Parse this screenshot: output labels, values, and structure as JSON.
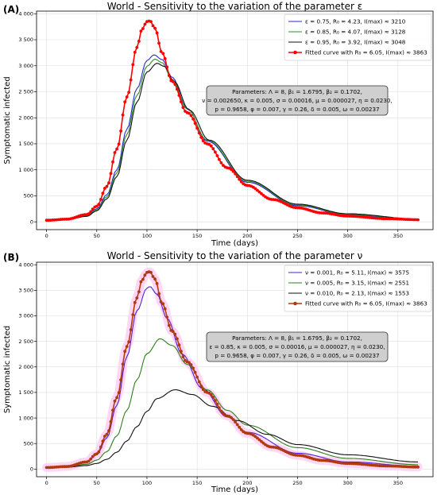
{
  "chart_data": [
    {
      "panel_label": "(A)",
      "type": "line",
      "title": "World - Sensitivity to the variation of the parameter ε",
      "xlabel": "Time (days)",
      "ylabel": "Symptomatic infected",
      "xlim": [
        -10,
        385
      ],
      "ylim": [
        -150,
        4050
      ],
      "xticks": [
        0,
        50,
        100,
        150,
        200,
        250,
        300,
        350
      ],
      "yticks": [
        0,
        500,
        1000,
        1500,
        2000,
        2500,
        3000,
        3500,
        4000
      ],
      "ytick_labels": [
        "0",
        "500",
        "1 000",
        "1 500",
        "2 000",
        "2 500",
        "3 000",
        "3 500",
        "4 000"
      ],
      "grid": true,
      "legend_position": "top-right",
      "series": [
        {
          "legend": "ε = 0.75, R₀ = 4.23,  I(max) ≈ 3210",
          "color": "#2b2bcc",
          "marker": "none",
          "x": [
            0,
            20,
            40,
            50,
            60,
            70,
            80,
            90,
            100,
            107,
            115,
            125,
            140,
            160,
            200,
            250,
            300,
            370
          ],
          "y": [
            30,
            45,
            125,
            250,
            520,
            1000,
            1780,
            2560,
            3100,
            3210,
            3120,
            2780,
            2180,
            1550,
            760,
            310,
            135,
            45
          ]
        },
        {
          "legend": "ε = 0.85, R₀ = 4.07,  I(max) ≈ 3128",
          "color": "#2e8b2e",
          "marker": "none",
          "x": [
            0,
            20,
            40,
            50,
            60,
            70,
            80,
            90,
            100,
            108,
            115,
            125,
            140,
            160,
            200,
            250,
            300,
            370
          ],
          "y": [
            30,
            42,
            115,
            230,
            480,
            940,
            1680,
            2430,
            2990,
            3128,
            3060,
            2740,
            2170,
            1570,
            780,
            325,
            145,
            50
          ]
        },
        {
          "legend": "ε = 0.95, R₀ = 3.92,  I(max) ≈ 3048",
          "color": "#111111",
          "marker": "none",
          "x": [
            0,
            20,
            40,
            50,
            60,
            70,
            80,
            90,
            100,
            110,
            117,
            127,
            142,
            162,
            200,
            250,
            300,
            370
          ],
          "y": [
            30,
            40,
            105,
            210,
            440,
            870,
            1570,
            2300,
            2880,
            3048,
            2990,
            2700,
            2150,
            1570,
            800,
            340,
            155,
            55
          ]
        },
        {
          "legend": "Fitted curve with R₀ = 6.05, I(max) ≈ 3863",
          "color": "#ff0000",
          "marker": "dot",
          "x": [
            0,
            20,
            40,
            50,
            60,
            70,
            80,
            90,
            95,
            100,
            103,
            108,
            115,
            125,
            140,
            160,
            180,
            200,
            225,
            250,
            275,
            300,
            340,
            370
          ],
          "y": [
            30,
            50,
            140,
            300,
            680,
            1400,
            2400,
            3350,
            3700,
            3850,
            3863,
            3720,
            3250,
            2700,
            2100,
            1500,
            1040,
            700,
            430,
            270,
            170,
            110,
            60,
            40
          ]
        }
      ],
      "params_box": [
        "Parameters:  Λ = 8, β₁ = 1.6795, β₂ = 0.1702,",
        "ν = 0.002650, κ = 0.005, σ = 0.00016, μ = 0.000027, η = 0.0230,",
        "p = 0.9658, φ = 0.007, γ = 0.26, δ = 0.005, ω = 0.00237"
      ]
    },
    {
      "panel_label": "(B)",
      "type": "line",
      "title": "World - Sensitivity to the variation of the parameter ν",
      "xlabel": "Time (days)",
      "ylabel": "Symptomatic infected",
      "xlim": [
        -10,
        385
      ],
      "ylim": [
        -150,
        4050
      ],
      "xticks": [
        0,
        50,
        100,
        150,
        200,
        250,
        300,
        350
      ],
      "yticks": [
        0,
        500,
        1000,
        1500,
        2000,
        2500,
        3000,
        3500,
        4000
      ],
      "ytick_labels": [
        "0",
        "500",
        "1 000",
        "1 500",
        "2 000",
        "2 500",
        "3 000",
        "3 500",
        "4 000"
      ],
      "grid": true,
      "legend_position": "top-right",
      "series": [
        {
          "legend": "ν = 0.001, R₀ = 5.11,  I(max) ≈ 3575",
          "color": "#4b1fd6",
          "marker": "none",
          "x": [
            0,
            20,
            40,
            50,
            60,
            70,
            80,
            90,
            100,
            103,
            110,
            120,
            135,
            155,
            180,
            200,
            250,
            300,
            370
          ],
          "y": [
            30,
            50,
            135,
            280,
            610,
            1250,
            2200,
            3100,
            3540,
            3575,
            3420,
            2950,
            2250,
            1580,
            1020,
            720,
            310,
            140,
            55
          ]
        },
        {
          "legend": "ν = 0.005, R₀ = 3.15,  I(max) ≈ 2551",
          "color": "#2e7d1e",
          "marker": "none",
          "x": [
            0,
            20,
            40,
            50,
            60,
            70,
            80,
            90,
            100,
            113,
            125,
            140,
            160,
            180,
            200,
            250,
            300,
            370
          ],
          "y": [
            30,
            40,
            95,
            175,
            340,
            650,
            1150,
            1750,
            2260,
            2551,
            2420,
            2050,
            1550,
            1150,
            860,
            420,
            210,
            85
          ]
        },
        {
          "legend": "ν = 0.010, R₀ = 2.13,  I(max) ≈ 1553",
          "color": "#111111",
          "marker": "none",
          "x": [
            0,
            20,
            40,
            50,
            60,
            70,
            80,
            90,
            100,
            110,
            128,
            145,
            165,
            190,
            220,
            250,
            300,
            370
          ],
          "y": [
            30,
            35,
            70,
            110,
            190,
            330,
            550,
            830,
            1130,
            1380,
            1553,
            1460,
            1230,
            950,
            680,
            480,
            280,
            140
          ]
        },
        {
          "legend": "Fitted curve with R₀ = 6.05, I(max) ≈ 3863",
          "color": "#b03a10",
          "marker": "dot",
          "x": [
            0,
            20,
            40,
            50,
            60,
            70,
            80,
            90,
            95,
            100,
            103,
            108,
            115,
            125,
            140,
            160,
            180,
            200,
            225,
            250,
            275,
            300,
            340,
            370
          ],
          "y": [
            30,
            50,
            140,
            300,
            680,
            1400,
            2400,
            3350,
            3700,
            3850,
            3863,
            3720,
            3250,
            2700,
            2100,
            1500,
            1040,
            700,
            430,
            270,
            170,
            110,
            60,
            40
          ]
        }
      ],
      "params_box": [
        "Parameters:  Λ = 8, β₁ = 1.6795, β₂ = 0.1702,",
        "ε = 0.85, κ = 0.005, σ = 0.00016, μ = 0.000027, η = 0.0230,",
        "p = 0.9658, φ = 0.007, γ = 0.26, δ = 0.005, ω = 0.00237"
      ]
    }
  ]
}
